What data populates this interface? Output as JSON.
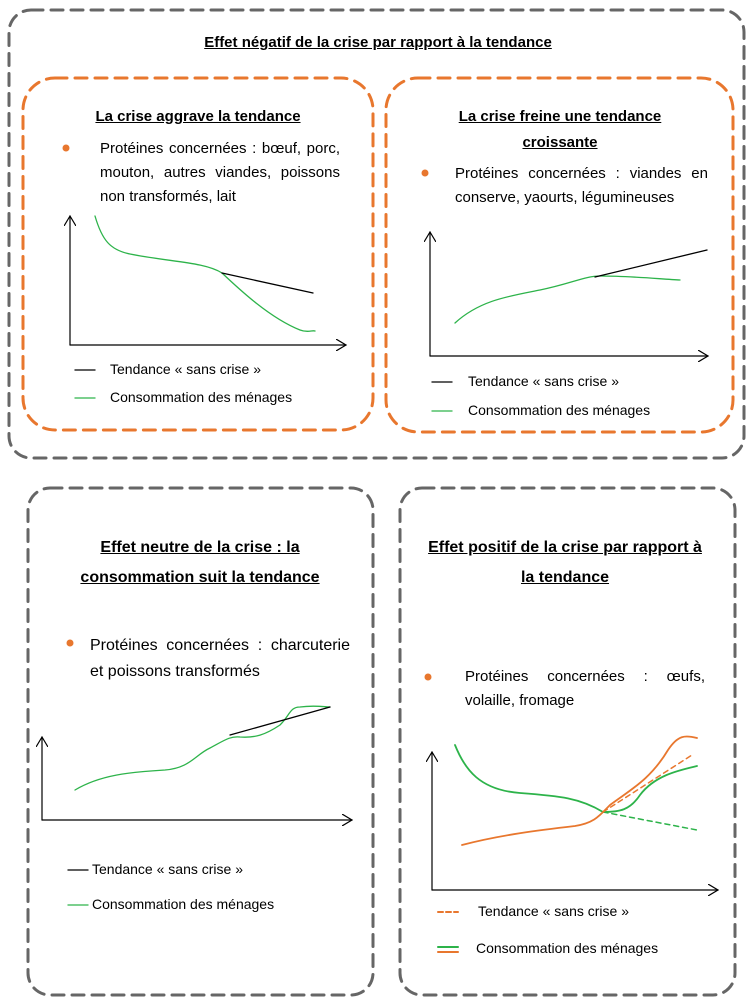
{
  "top_panel": {
    "title": "Effet négatif de la crise par rapport à la tendance",
    "left": {
      "title": "La crise aggrave la tendance",
      "bullet": "Protéines concernées : bœuf, porc, mouton, autres viandes, poissons non transformés, lait",
      "legend": [
        "Tendance « sans crise »",
        "Consommation des ménages"
      ]
    },
    "right": {
      "title": "La crise freine une tendance croissante",
      "bullet": "Protéines concernées : viandes en conserve, yaourts, légumineuses",
      "legend": [
        "Tendance « sans crise »",
        "Consommation des ménages"
      ]
    }
  },
  "bottom_left": {
    "title": "Effet neutre de la crise : la consommation suit la tendance",
    "bullet": "Protéines concernées : charcuterie et poissons transformés",
    "legend": [
      "Tendance « sans crise »",
      "Consommation des ménages"
    ]
  },
  "bottom_right": {
    "title": "Effet positif de la crise par rapport à la tendance",
    "bullet": "Protéines concernées : œufs, volaille, fromage",
    "legend": [
      "Tendance « sans crise »",
      "Consommation des ménages"
    ]
  }
}
